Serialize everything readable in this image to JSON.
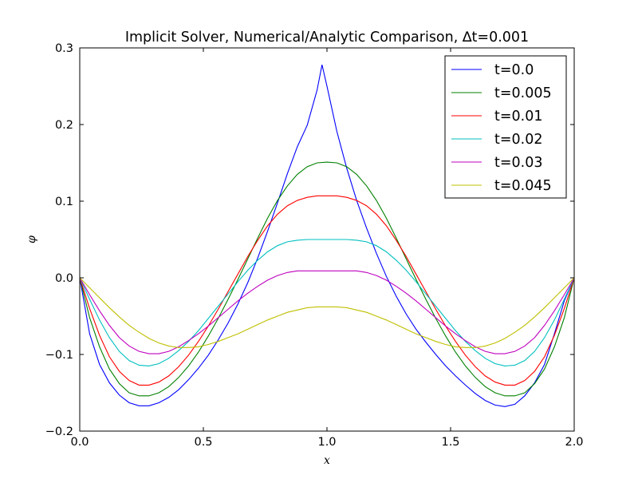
{
  "chart_data": {
    "type": "line",
    "title": "Implicit Solver, Numerical/Analytic Comparison, ∆t=0.001",
    "xlabel": "x",
    "ylabel": "φ",
    "xlim": [
      0.0,
      2.0
    ],
    "ylim": [
      -0.2,
      0.3
    ],
    "x_ticks": [
      "0.0",
      "0.5",
      "1.0",
      "1.5",
      "2.0"
    ],
    "y_ticks": [
      "−0.2",
      "−0.1",
      "0.0",
      "0.1",
      "0.2",
      "0.3"
    ],
    "x_tick_values": [
      0.0,
      0.5,
      1.0,
      1.5,
      2.0
    ],
    "y_tick_values": [
      -0.2,
      -0.1,
      0.0,
      0.1,
      0.2,
      0.3
    ],
    "grid": false,
    "legend_position": "upper right",
    "series": [
      {
        "name": "t=0.0",
        "color": "#0000ff",
        "x": [
          0.0,
          0.04,
          0.08,
          0.12,
          0.16,
          0.2,
          0.24,
          0.28,
          0.32,
          0.36,
          0.4,
          0.44,
          0.48,
          0.52,
          0.56,
          0.6,
          0.64,
          0.68,
          0.72,
          0.76,
          0.8,
          0.84,
          0.88,
          0.92,
          0.96,
          0.98,
          1.0,
          1.04,
          1.08,
          1.12,
          1.16,
          1.2,
          1.24,
          1.28,
          1.32,
          1.36,
          1.4,
          1.44,
          1.48,
          1.52,
          1.56,
          1.6,
          1.64,
          1.68,
          1.72,
          1.76,
          1.8,
          1.84,
          1.88,
          1.92,
          1.96,
          2.0
        ],
        "y": [
          0.0,
          -0.073,
          -0.113,
          -0.137,
          -0.153,
          -0.163,
          -0.167,
          -0.167,
          -0.163,
          -0.156,
          -0.146,
          -0.133,
          -0.118,
          -0.101,
          -0.081,
          -0.059,
          -0.034,
          -0.006,
          0.026,
          0.061,
          0.098,
          0.136,
          0.171,
          0.199,
          0.245,
          0.278,
          0.25,
          0.191,
          0.143,
          0.101,
          0.065,
          0.032,
          0.002,
          -0.024,
          -0.047,
          -0.067,
          -0.084,
          -0.1,
          -0.115,
          -0.128,
          -0.14,
          -0.151,
          -0.16,
          -0.166,
          -0.168,
          -0.165,
          -0.154,
          -0.137,
          -0.113,
          -0.073,
          -0.03,
          0.0
        ]
      },
      {
        "name": "t=0.005",
        "color": "#008000",
        "x": [
          0.0,
          0.04,
          0.08,
          0.12,
          0.16,
          0.2,
          0.24,
          0.28,
          0.32,
          0.36,
          0.4,
          0.44,
          0.48,
          0.52,
          0.56,
          0.6,
          0.64,
          0.68,
          0.72,
          0.76,
          0.8,
          0.84,
          0.88,
          0.92,
          0.96,
          1.0,
          1.04,
          1.08,
          1.12,
          1.16,
          1.2,
          1.24,
          1.28,
          1.32,
          1.36,
          1.4,
          1.44,
          1.48,
          1.52,
          1.56,
          1.6,
          1.64,
          1.68,
          1.72,
          1.76,
          1.8,
          1.84,
          1.88,
          1.92,
          1.96,
          2.0
        ],
        "y": [
          0.0,
          -0.052,
          -0.09,
          -0.119,
          -0.138,
          -0.15,
          -0.154,
          -0.154,
          -0.15,
          -0.142,
          -0.13,
          -0.115,
          -0.097,
          -0.076,
          -0.053,
          -0.028,
          -0.002,
          0.025,
          0.052,
          0.078,
          0.101,
          0.12,
          0.135,
          0.145,
          0.15,
          0.151,
          0.15,
          0.145,
          0.135,
          0.12,
          0.101,
          0.078,
          0.052,
          0.025,
          -0.002,
          -0.028,
          -0.053,
          -0.076,
          -0.097,
          -0.115,
          -0.13,
          -0.142,
          -0.15,
          -0.154,
          -0.154,
          -0.15,
          -0.138,
          -0.119,
          -0.09,
          -0.052,
          0.0
        ]
      },
      {
        "name": "t=0.01",
        "color": "#ff0000",
        "x": [
          0.0,
          0.04,
          0.08,
          0.12,
          0.16,
          0.2,
          0.24,
          0.28,
          0.32,
          0.36,
          0.4,
          0.44,
          0.48,
          0.52,
          0.56,
          0.6,
          0.64,
          0.68,
          0.72,
          0.76,
          0.8,
          0.84,
          0.88,
          0.92,
          0.96,
          1.0,
          1.04,
          1.08,
          1.12,
          1.16,
          1.2,
          1.24,
          1.28,
          1.32,
          1.36,
          1.4,
          1.44,
          1.48,
          1.52,
          1.56,
          1.6,
          1.64,
          1.68,
          1.72,
          1.76,
          1.8,
          1.84,
          1.88,
          1.92,
          1.96,
          2.0
        ],
        "y": [
          0.0,
          -0.04,
          -0.075,
          -0.103,
          -0.122,
          -0.134,
          -0.14,
          -0.14,
          -0.136,
          -0.128,
          -0.116,
          -0.101,
          -0.083,
          -0.063,
          -0.041,
          -0.018,
          0.005,
          0.028,
          0.049,
          0.068,
          0.083,
          0.094,
          0.101,
          0.105,
          0.107,
          0.107,
          0.107,
          0.105,
          0.101,
          0.094,
          0.083,
          0.068,
          0.049,
          0.028,
          0.005,
          -0.018,
          -0.041,
          -0.063,
          -0.083,
          -0.101,
          -0.116,
          -0.128,
          -0.136,
          -0.14,
          -0.14,
          -0.134,
          -0.122,
          -0.103,
          -0.075,
          -0.04,
          0.0
        ]
      },
      {
        "name": "t=0.02",
        "color": "#00bfbf",
        "x": [
          0.0,
          0.04,
          0.08,
          0.12,
          0.16,
          0.2,
          0.24,
          0.28,
          0.32,
          0.36,
          0.4,
          0.44,
          0.48,
          0.52,
          0.56,
          0.6,
          0.64,
          0.68,
          0.72,
          0.76,
          0.8,
          0.84,
          0.88,
          0.92,
          0.96,
          1.0,
          1.04,
          1.08,
          1.12,
          1.16,
          1.2,
          1.24,
          1.28,
          1.32,
          1.36,
          1.4,
          1.44,
          1.48,
          1.52,
          1.56,
          1.6,
          1.64,
          1.68,
          1.72,
          1.76,
          1.8,
          1.84,
          1.88,
          1.92,
          1.96,
          2.0
        ],
        "y": [
          0.0,
          -0.028,
          -0.055,
          -0.078,
          -0.096,
          -0.108,
          -0.114,
          -0.115,
          -0.112,
          -0.105,
          -0.095,
          -0.083,
          -0.069,
          -0.053,
          -0.037,
          -0.021,
          -0.005,
          0.01,
          0.023,
          0.034,
          0.042,
          0.047,
          0.049,
          0.05,
          0.05,
          0.05,
          0.05,
          0.05,
          0.049,
          0.047,
          0.042,
          0.034,
          0.023,
          0.01,
          -0.005,
          -0.021,
          -0.037,
          -0.053,
          -0.069,
          -0.083,
          -0.095,
          -0.105,
          -0.112,
          -0.115,
          -0.114,
          -0.108,
          -0.096,
          -0.078,
          -0.055,
          -0.028,
          0.0
        ]
      },
      {
        "name": "t=0.03",
        "color": "#bf00bf",
        "x": [
          0.0,
          0.04,
          0.08,
          0.12,
          0.16,
          0.2,
          0.24,
          0.28,
          0.32,
          0.36,
          0.4,
          0.44,
          0.48,
          0.52,
          0.56,
          0.6,
          0.64,
          0.68,
          0.72,
          0.76,
          0.8,
          0.84,
          0.88,
          0.92,
          0.96,
          1.0,
          1.04,
          1.08,
          1.12,
          1.16,
          1.2,
          1.24,
          1.28,
          1.32,
          1.36,
          1.4,
          1.44,
          1.48,
          1.52,
          1.56,
          1.6,
          1.64,
          1.68,
          1.72,
          1.76,
          1.8,
          1.84,
          1.88,
          1.92,
          1.96,
          2.0
        ],
        "y": [
          0.0,
          -0.022,
          -0.043,
          -0.062,
          -0.078,
          -0.089,
          -0.096,
          -0.099,
          -0.099,
          -0.096,
          -0.09,
          -0.082,
          -0.073,
          -0.063,
          -0.052,
          -0.041,
          -0.03,
          -0.02,
          -0.011,
          -0.003,
          0.003,
          0.007,
          0.009,
          0.009,
          0.009,
          0.009,
          0.009,
          0.009,
          0.009,
          0.007,
          0.003,
          -0.003,
          -0.011,
          -0.02,
          -0.03,
          -0.041,
          -0.052,
          -0.063,
          -0.073,
          -0.082,
          -0.09,
          -0.096,
          -0.099,
          -0.099,
          -0.096,
          -0.089,
          -0.078,
          -0.062,
          -0.043,
          -0.022,
          0.0
        ]
      },
      {
        "name": "t=0.045",
        "color": "#bfbf00",
        "x": [
          0.0,
          0.04,
          0.08,
          0.12,
          0.16,
          0.2,
          0.24,
          0.28,
          0.32,
          0.36,
          0.4,
          0.44,
          0.48,
          0.52,
          0.56,
          0.6,
          0.64,
          0.68,
          0.72,
          0.76,
          0.8,
          0.84,
          0.88,
          0.92,
          0.96,
          1.0,
          1.04,
          1.08,
          1.12,
          1.16,
          1.2,
          1.24,
          1.28,
          1.32,
          1.36,
          1.4,
          1.44,
          1.48,
          1.52,
          1.56,
          1.6,
          1.64,
          1.68,
          1.72,
          1.76,
          1.8,
          1.84,
          1.88,
          1.92,
          1.96,
          2.0
        ],
        "y": [
          0.0,
          -0.013,
          -0.026,
          -0.039,
          -0.051,
          -0.062,
          -0.071,
          -0.079,
          -0.085,
          -0.089,
          -0.091,
          -0.091,
          -0.09,
          -0.087,
          -0.083,
          -0.078,
          -0.073,
          -0.067,
          -0.061,
          -0.055,
          -0.05,
          -0.045,
          -0.042,
          -0.039,
          -0.038,
          -0.038,
          -0.038,
          -0.039,
          -0.042,
          -0.045,
          -0.05,
          -0.055,
          -0.061,
          -0.067,
          -0.073,
          -0.078,
          -0.083,
          -0.087,
          -0.09,
          -0.091,
          -0.091,
          -0.089,
          -0.085,
          -0.079,
          -0.071,
          -0.062,
          -0.051,
          -0.039,
          -0.026,
          -0.013,
          0.0
        ]
      }
    ]
  }
}
